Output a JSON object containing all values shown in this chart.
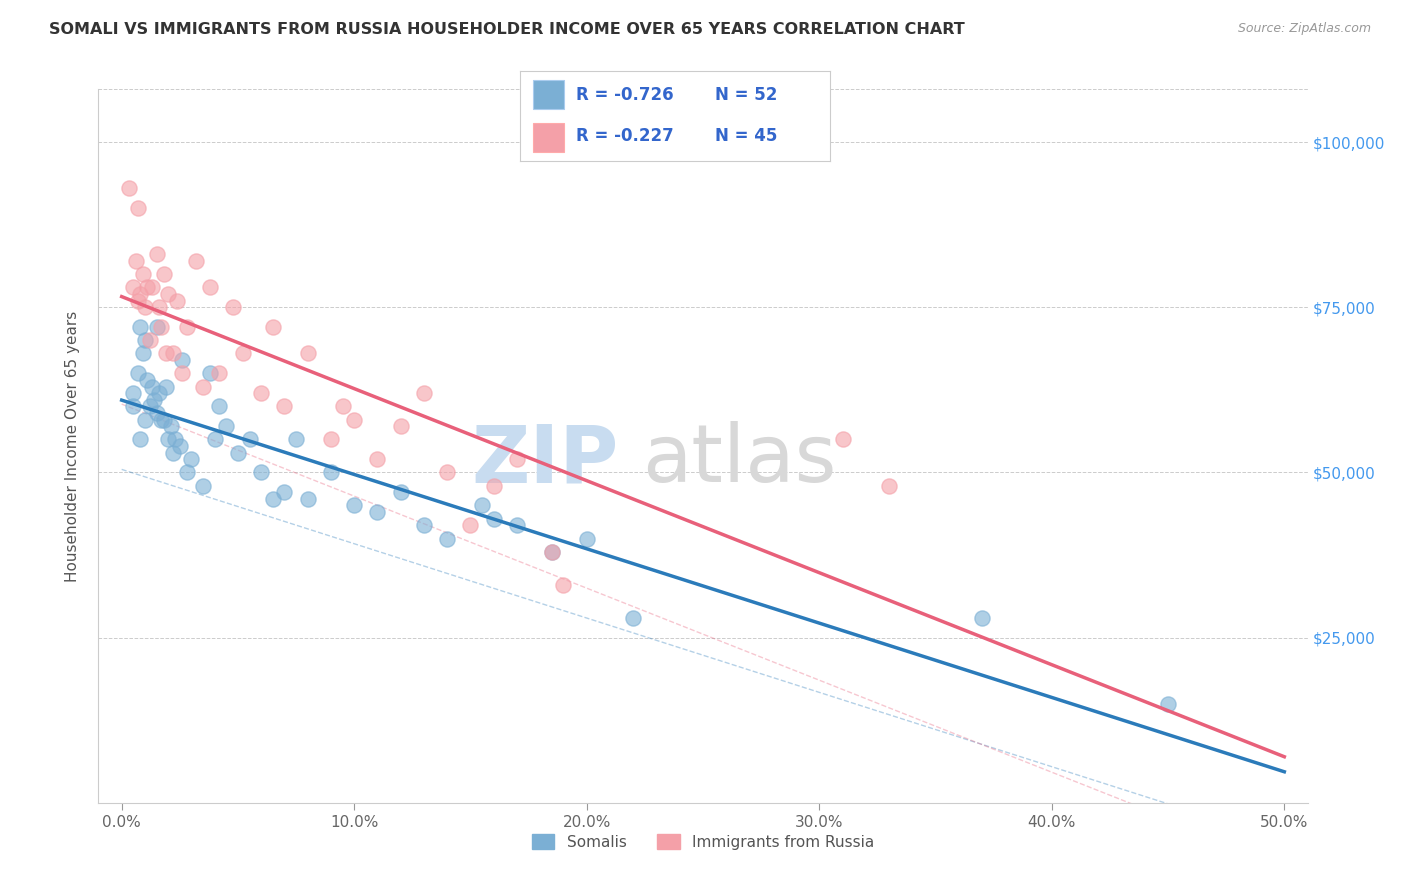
{
  "title": "SOMALI VS IMMIGRANTS FROM RUSSIA HOUSEHOLDER INCOME OVER 65 YEARS CORRELATION CHART",
  "source": "Source: ZipAtlas.com",
  "xlabel_ticks": [
    "0.0%",
    "10.0%",
    "20.0%",
    "30.0%",
    "40.0%",
    "50.0%"
  ],
  "xlabel_vals": [
    0.0,
    0.1,
    0.2,
    0.3,
    0.4,
    0.5
  ],
  "ylabel": "Householder Income Over 65 years",
  "ylabel_ticks": [
    "$25,000",
    "$50,000",
    "$75,000",
    "$100,000"
  ],
  "ylabel_vals": [
    25000,
    50000,
    75000,
    100000
  ],
  "ylim": [
    0,
    108000
  ],
  "xlim": [
    -0.01,
    0.51
  ],
  "somali_R": "-0.726",
  "somali_N": "52",
  "russia_R": "-0.227",
  "russia_N": "45",
  "somali_color": "#7BAFD4",
  "russia_color": "#F4A0A8",
  "somali_line_color": "#2B7BBA",
  "russia_line_color": "#E8607A",
  "somali_x": [
    0.005,
    0.005,
    0.007,
    0.008,
    0.008,
    0.009,
    0.01,
    0.01,
    0.011,
    0.012,
    0.013,
    0.014,
    0.015,
    0.015,
    0.016,
    0.017,
    0.018,
    0.019,
    0.02,
    0.021,
    0.022,
    0.023,
    0.025,
    0.026,
    0.028,
    0.03,
    0.035,
    0.038,
    0.04,
    0.042,
    0.045,
    0.05,
    0.055,
    0.06,
    0.065,
    0.07,
    0.075,
    0.08,
    0.09,
    0.1,
    0.11,
    0.12,
    0.13,
    0.14,
    0.155,
    0.16,
    0.17,
    0.185,
    0.2,
    0.22,
    0.37,
    0.45
  ],
  "somali_y": [
    62000,
    60000,
    65000,
    72000,
    55000,
    68000,
    70000,
    58000,
    64000,
    60000,
    63000,
    61000,
    59000,
    72000,
    62000,
    58000,
    58000,
    63000,
    55000,
    57000,
    53000,
    55000,
    54000,
    67000,
    50000,
    52000,
    48000,
    65000,
    55000,
    60000,
    57000,
    53000,
    55000,
    50000,
    46000,
    47000,
    55000,
    46000,
    50000,
    45000,
    44000,
    47000,
    42000,
    40000,
    45000,
    43000,
    42000,
    38000,
    40000,
    28000,
    28000,
    15000
  ],
  "russia_x": [
    0.003,
    0.005,
    0.006,
    0.007,
    0.007,
    0.008,
    0.009,
    0.01,
    0.011,
    0.012,
    0.013,
    0.015,
    0.016,
    0.017,
    0.018,
    0.019,
    0.02,
    0.022,
    0.024,
    0.026,
    0.028,
    0.032,
    0.035,
    0.038,
    0.042,
    0.048,
    0.052,
    0.06,
    0.065,
    0.07,
    0.08,
    0.09,
    0.095,
    0.1,
    0.11,
    0.12,
    0.13,
    0.14,
    0.15,
    0.16,
    0.17,
    0.185,
    0.19,
    0.31,
    0.33
  ],
  "russia_y": [
    93000,
    78000,
    82000,
    76000,
    90000,
    77000,
    80000,
    75000,
    78000,
    70000,
    78000,
    83000,
    75000,
    72000,
    80000,
    68000,
    77000,
    68000,
    76000,
    65000,
    72000,
    82000,
    63000,
    78000,
    65000,
    75000,
    68000,
    62000,
    72000,
    60000,
    68000,
    55000,
    60000,
    58000,
    52000,
    57000,
    62000,
    50000,
    42000,
    48000,
    52000,
    38000,
    33000,
    55000,
    48000
  ]
}
